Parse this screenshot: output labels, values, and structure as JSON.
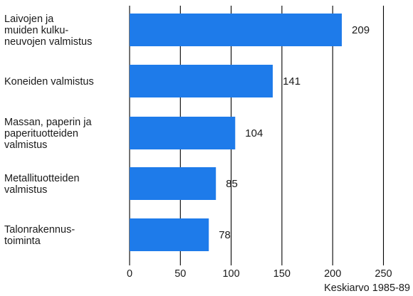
{
  "chart_data": {
    "type": "bar",
    "orientation": "horizontal",
    "categories": [
      [
        "Laivojen ja",
        "muiden kulku-",
        "neuvojen valmistus"
      ],
      [
        "Koneiden valmistus"
      ],
      [
        "Massan, paperin ja",
        "paperituotteiden",
        "valmistus"
      ],
      [
        "Metallituotteiden",
        "valmistus"
      ],
      [
        "Talonrakennus-",
        "toiminta"
      ]
    ],
    "values": [
      209,
      141,
      104,
      85,
      78
    ],
    "value_labels": [
      "209",
      "141",
      "104",
      "85",
      "78"
    ],
    "x_ticks": [
      "0",
      "50",
      "100",
      "150",
      "200",
      "250"
    ],
    "x_range": [
      0,
      250
    ],
    "grid": "vertical",
    "bar_color": "#1e7bea",
    "footnote": "Keskiarvo 1985-89"
  }
}
